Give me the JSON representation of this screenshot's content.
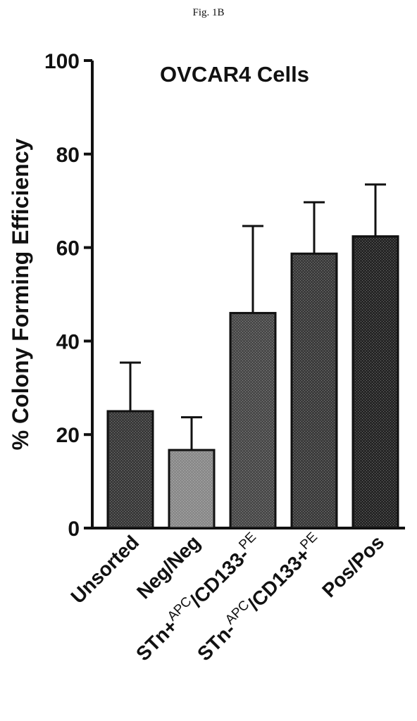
{
  "figure_label": "Fig. 1B",
  "chart_data": {
    "type": "bar",
    "title": "OVCAR4 Cells",
    "xlabel": "",
    "ylabel": "% Colony Forming Efficiency",
    "ylim": [
      0,
      100
    ],
    "yticks": [
      "0",
      "20",
      "40",
      "60",
      "80",
      "100"
    ],
    "grid": false,
    "categories": [
      [
        {
          "text": "Unsorted"
        }
      ],
      [
        {
          "text": "Neg/Neg"
        }
      ],
      [
        {
          "text": "STn+"
        },
        {
          "text": "APC",
          "sup": true
        },
        {
          "text": "/CD133-"
        },
        {
          "text": "PE",
          "sup": true
        }
      ],
      [
        {
          "text": "STn-"
        },
        {
          "text": "APC",
          "sup": true
        },
        {
          "text": "/CD133+"
        },
        {
          "text": "PE",
          "sup": true
        }
      ],
      [
        {
          "text": "Pos/Pos"
        }
      ]
    ],
    "values": [
      25,
      16.7,
      46,
      58.7,
      62.4
    ],
    "errors": [
      10.4,
      7.0,
      18.6,
      11.0,
      11.1
    ],
    "bar_fills": [
      "#3a3a3a",
      "#8a8a8a",
      "#4a4a4a",
      "#3c3c3c",
      "#262626"
    ]
  }
}
